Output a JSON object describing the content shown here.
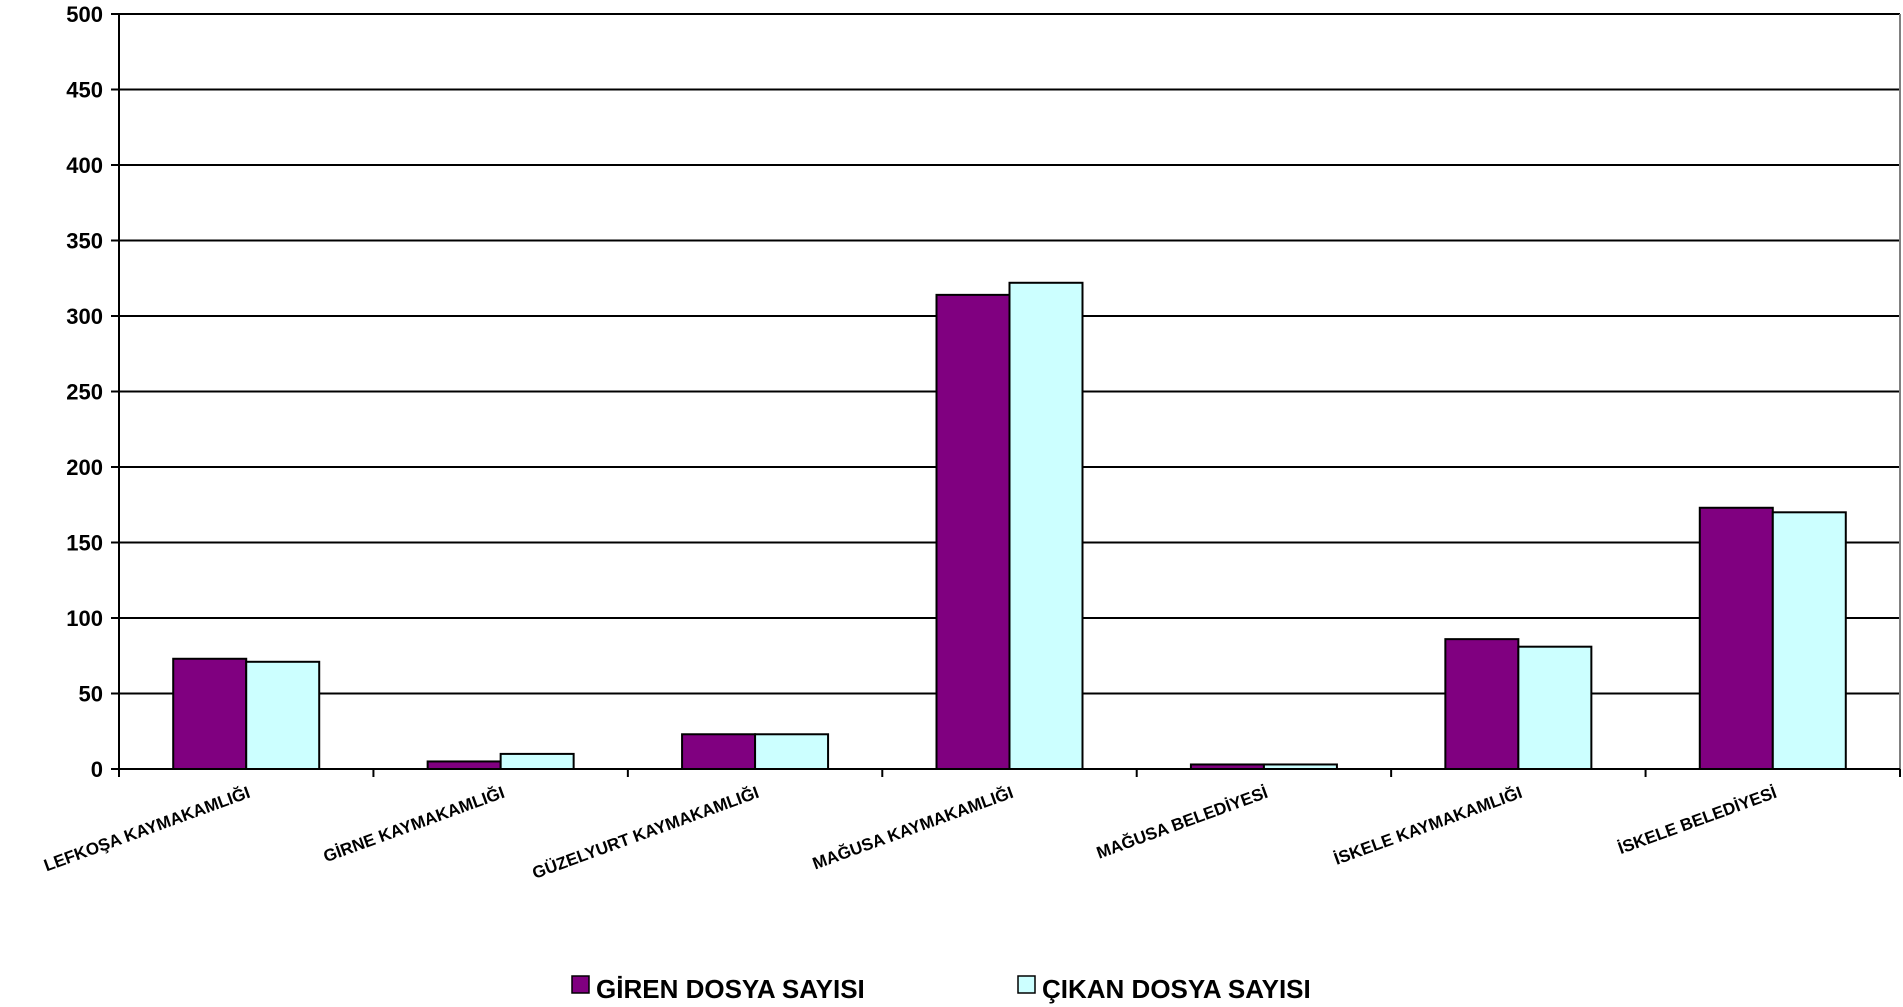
{
  "chart_data": {
    "type": "bar",
    "title": "",
    "xlabel": "",
    "ylabel": "",
    "ylim": [
      0,
      500
    ],
    "yticks": [
      0,
      50,
      100,
      150,
      200,
      250,
      300,
      350,
      400,
      450,
      500
    ],
    "grid": true,
    "legend_position": "bottom",
    "categories": [
      "LEFKOŞA KAYMAKAMLIĞI",
      "GİRNE KAYMAKAMLIĞI",
      "GÜZELYURT KAYMAKAMLIĞI",
      "MAĞUSA KAYMAKAMLIĞI",
      "MAĞUSA BELEDİYESİ",
      "İSKELE KAYMAKAMLIĞI",
      "İSKELE BELEDİYESİ"
    ],
    "series": [
      {
        "name": "GİREN DOSYA SAYISI",
        "color": "#800080",
        "values": [
          73,
          5,
          23,
          314,
          3,
          86,
          173
        ]
      },
      {
        "name": "ÇIKAN DOSYA SAYISI",
        "color": "#CCFFFF",
        "values": [
          71,
          10,
          23,
          322,
          3,
          81,
          170
        ]
      }
    ]
  }
}
